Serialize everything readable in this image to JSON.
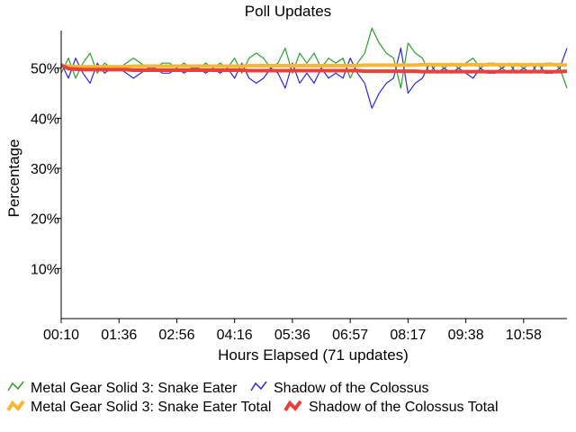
{
  "chart_data": {
    "type": "line",
    "title": "Poll Updates",
    "xlabel": "Hours Elapsed (71 updates)",
    "ylabel": "Percentage",
    "ylim": [
      0,
      57.5
    ],
    "y_ticks": [
      10,
      20,
      30,
      40,
      50
    ],
    "y_tick_labels": [
      "10%",
      "20%",
      "30%",
      "40%",
      "50%"
    ],
    "x_tick_labels": [
      "00:10",
      "01:36",
      "02:56",
      "04:16",
      "05:36",
      "06:57",
      "08:17",
      "09:38",
      "10:58"
    ],
    "x_tick_index": [
      0,
      8,
      16,
      24,
      32,
      40,
      48,
      56,
      64
    ],
    "grid": false,
    "legend_position": "bottom",
    "series": [
      {
        "name": "Metal Gear Solid 3: Snake Eater",
        "color": "#2ca02c",
        "values": [
          49,
          52,
          48,
          51,
          53,
          49,
          51,
          50,
          50,
          51,
          52,
          51,
          50,
          50,
          51,
          51,
          50,
          51,
          50,
          50,
          51,
          50,
          51,
          50,
          52,
          49,
          52,
          53,
          52,
          50,
          51,
          54,
          49,
          53,
          51,
          53,
          50,
          52,
          51,
          52,
          48,
          51,
          53,
          58,
          55,
          53,
          52,
          46,
          55,
          53,
          52,
          49,
          51,
          50,
          51,
          50,
          51,
          52,
          50,
          51,
          51,
          50,
          49,
          51,
          50,
          51,
          49,
          51,
          51,
          50,
          46
        ]
      },
      {
        "name": "Shadow of the Colossus",
        "color": "#2a2ad8",
        "values": [
          51,
          48,
          52,
          49,
          47,
          51,
          49,
          50,
          50,
          49,
          48,
          49,
          50,
          50,
          49,
          49,
          50,
          49,
          50,
          50,
          49,
          50,
          49,
          50,
          48,
          51,
          48,
          47,
          48,
          50,
          49,
          46,
          51,
          47,
          49,
          47,
          50,
          48,
          49,
          48,
          52,
          49,
          47,
          42,
          45,
          47,
          48,
          54,
          45,
          47,
          48,
          51,
          49,
          50,
          49,
          50,
          49,
          48,
          50,
          49,
          49,
          50,
          51,
          49,
          50,
          49,
          51,
          49,
          49,
          50,
          54
        ]
      },
      {
        "name": "Metal Gear Solid 3: Snake Eater Total",
        "color": "#f7b733",
        "values": [
          50.4,
          50.4,
          50.3,
          50.3,
          50.3,
          50.3,
          50.3,
          50.3,
          50.3,
          50.3,
          50.4,
          50.4,
          50.4,
          50.4,
          50.4,
          50.4,
          50.4,
          50.4,
          50.4,
          50.4,
          50.4,
          50.4,
          50.4,
          50.4,
          50.4,
          50.4,
          50.5,
          50.5,
          50.5,
          50.5,
          50.5,
          50.5,
          50.5,
          50.5,
          50.5,
          50.5,
          50.5,
          50.5,
          50.5,
          50.5,
          50.5,
          50.5,
          50.6,
          50.6,
          50.6,
          50.6,
          50.6,
          50.6,
          50.6,
          50.6,
          50.7,
          50.7,
          50.7,
          50.7,
          50.7,
          50.7,
          50.7,
          50.7,
          50.7,
          50.7,
          50.7,
          50.7,
          50.7,
          50.7,
          50.7,
          50.7,
          50.7,
          50.7,
          50.7,
          50.7,
          50.6
        ]
      },
      {
        "name": "Shadow of the Colossus Total",
        "color": "#e8403a",
        "values": [
          50.6,
          49.9,
          49.8,
          49.7,
          49.7,
          49.7,
          49.7,
          49.7,
          49.7,
          49.7,
          49.6,
          49.6,
          49.6,
          49.6,
          49.6,
          49.6,
          49.6,
          49.6,
          49.6,
          49.6,
          49.6,
          49.6,
          49.6,
          49.6,
          49.6,
          49.6,
          49.5,
          49.5,
          49.5,
          49.5,
          49.5,
          49.5,
          49.5,
          49.5,
          49.5,
          49.5,
          49.5,
          49.5,
          49.5,
          49.5,
          49.5,
          49.5,
          49.4,
          49.4,
          49.4,
          49.4,
          49.4,
          49.4,
          49.4,
          49.4,
          49.3,
          49.3,
          49.3,
          49.3,
          49.3,
          49.3,
          49.3,
          49.3,
          49.3,
          49.3,
          49.3,
          49.3,
          49.3,
          49.3,
          49.3,
          49.3,
          49.3,
          49.3,
          49.3,
          49.3,
          49.4
        ]
      }
    ]
  }
}
